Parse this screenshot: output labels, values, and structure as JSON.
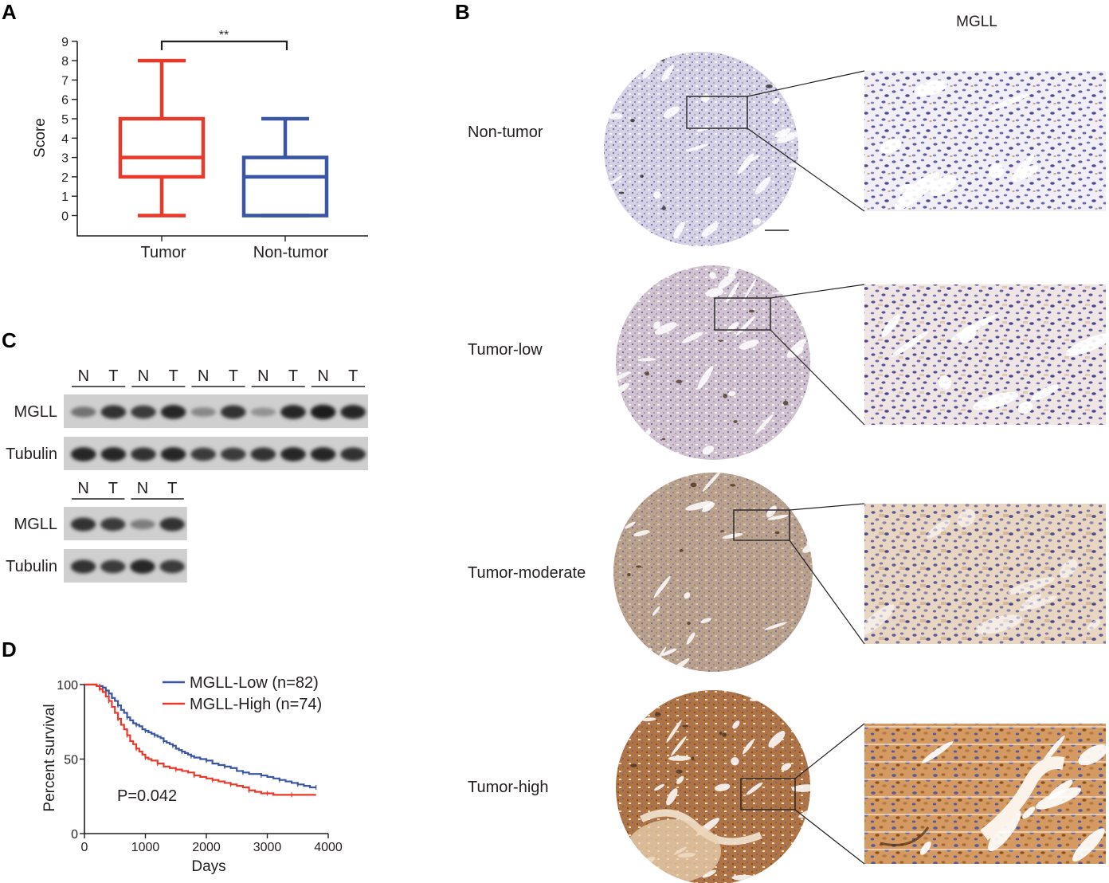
{
  "panels": {
    "a": "A",
    "b": "B",
    "c": "C",
    "d": "D"
  },
  "panel_a": {
    "significance": "**"
  },
  "panel_b": {
    "column_title": "MGLL",
    "rows": [
      {
        "label": "Non-tumor",
        "stain": "#9a8fb8",
        "tint": "#efedf3"
      },
      {
        "label": "Tumor-low",
        "stain": "#9e8ab0",
        "tint": "#f0eaed"
      },
      {
        "label": "Tumor-moderate",
        "stain": "#a8876f",
        "tint": "#e9d9cc"
      },
      {
        "label": "Tumor-high",
        "stain": "#9c5a2c",
        "tint": "#e4c2a0"
      }
    ]
  },
  "panel_c": {
    "blot1": {
      "lane_labels": [
        "N",
        "T",
        "N",
        "T",
        "N",
        "T",
        "N",
        "T",
        "N",
        "T"
      ],
      "rows": [
        "MGLL",
        "Tubulin"
      ],
      "mgll_intensity": [
        0.55,
        0.85,
        0.8,
        0.9,
        0.45,
        0.85,
        0.4,
        0.9,
        0.95,
        0.9
      ],
      "tubulin_intensity": [
        0.9,
        0.9,
        0.85,
        0.9,
        0.8,
        0.8,
        0.85,
        0.9,
        0.9,
        0.85
      ]
    },
    "blot2": {
      "lane_labels": [
        "N",
        "T",
        "N",
        "T"
      ],
      "rows": [
        "MGLL",
        "Tubulin"
      ],
      "mgll_intensity": [
        0.85,
        0.8,
        0.5,
        0.85
      ],
      "tubulin_intensity": [
        0.85,
        0.8,
        0.9,
        0.8
      ]
    }
  },
  "pvalue": "P=0.042",
  "chart_data": [
    {
      "type": "box",
      "panel": "A",
      "categories": [
        "Tumor",
        "Non-tumor"
      ],
      "ylabel": "Score",
      "xlabel": "",
      "ylim": [
        -1,
        9
      ],
      "yticks": [
        0,
        1,
        2,
        3,
        4,
        5,
        6,
        7,
        8,
        9
      ],
      "boxes": [
        {
          "name": "Tumor",
          "min": 0,
          "q1": 2,
          "median": 3,
          "q3": 5,
          "max": 8,
          "color": "#e8392a"
        },
        {
          "name": "Non-tumor",
          "min": 0,
          "q1": 0,
          "median": 2,
          "q3": 3,
          "max": 5,
          "color": "#3955a3"
        }
      ],
      "annotation": "**"
    },
    {
      "type": "line",
      "panel": "D",
      "xlabel": "Days",
      "ylabel": "Percent survival",
      "xlim": [
        0,
        4000
      ],
      "ylim": [
        0,
        100
      ],
      "xticks": [
        0,
        1000,
        2000,
        3000,
        4000
      ],
      "yticks": [
        0,
        50,
        100
      ],
      "legend_position": "top-right",
      "series": [
        {
          "name": "MGLL-Low (n=82)",
          "color": "#3955a3",
          "points": [
            [
              0,
              100
            ],
            [
              150,
              100
            ],
            [
              200,
              99
            ],
            [
              250,
              99
            ],
            [
              300,
              98
            ],
            [
              350,
              96
            ],
            [
              400,
              94
            ],
            [
              450,
              91
            ],
            [
              500,
              89
            ],
            [
              550,
              86
            ],
            [
              600,
              83
            ],
            [
              650,
              81
            ],
            [
              700,
              78
            ],
            [
              750,
              76
            ],
            [
              800,
              74
            ],
            [
              850,
              73
            ],
            [
              900,
              72
            ],
            [
              950,
              70
            ],
            [
              1000,
              69
            ],
            [
              1050,
              68
            ],
            [
              1100,
              67
            ],
            [
              1150,
              66
            ],
            [
              1200,
              65
            ],
            [
              1250,
              64
            ],
            [
              1300,
              62
            ],
            [
              1350,
              61
            ],
            [
              1400,
              60
            ],
            [
              1450,
              59
            ],
            [
              1500,
              57
            ],
            [
              1550,
              56
            ],
            [
              1600,
              55
            ],
            [
              1650,
              54
            ],
            [
              1700,
              53
            ],
            [
              1750,
              52
            ],
            [
              1800,
              51
            ],
            [
              1900,
              50
            ],
            [
              2000,
              49
            ],
            [
              2100,
              47
            ],
            [
              2200,
              46
            ],
            [
              2300,
              45
            ],
            [
              2400,
              44
            ],
            [
              2500,
              42
            ],
            [
              2600,
              41
            ],
            [
              2700,
              40
            ],
            [
              2800,
              40
            ],
            [
              2900,
              39
            ],
            [
              3000,
              38
            ],
            [
              3100,
              37
            ],
            [
              3200,
              36
            ],
            [
              3300,
              35
            ],
            [
              3400,
              34
            ],
            [
              3500,
              33
            ],
            [
              3600,
              32
            ],
            [
              3700,
              31
            ],
            [
              3800,
              31
            ]
          ]
        },
        {
          "name": "MGLL-High (n=74)",
          "color": "#e8392a",
          "points": [
            [
              0,
              100
            ],
            [
              150,
              100
            ],
            [
              200,
              99
            ],
            [
              250,
              97
            ],
            [
              300,
              95
            ],
            [
              350,
              92
            ],
            [
              400,
              89
            ],
            [
              450,
              85
            ],
            [
              500,
              81
            ],
            [
              550,
              77
            ],
            [
              600,
              73
            ],
            [
              650,
              70
            ],
            [
              700,
              66
            ],
            [
              750,
              62
            ],
            [
              800,
              60
            ],
            [
              850,
              57
            ],
            [
              900,
              55
            ],
            [
              950,
              53
            ],
            [
              1000,
              51
            ],
            [
              1050,
              50
            ],
            [
              1100,
              49
            ],
            [
              1200,
              47
            ],
            [
              1300,
              45
            ],
            [
              1400,
              44
            ],
            [
              1500,
              43
            ],
            [
              1600,
              42
            ],
            [
              1700,
              41
            ],
            [
              1800,
              39
            ],
            [
              1900,
              38
            ],
            [
              2000,
              37
            ],
            [
              2100,
              36
            ],
            [
              2200,
              35
            ],
            [
              2300,
              34
            ],
            [
              2400,
              33
            ],
            [
              2500,
              32
            ],
            [
              2600,
              31
            ],
            [
              2700,
              29
            ],
            [
              2800,
              28
            ],
            [
              2900,
              27
            ],
            [
              3000,
              27
            ],
            [
              3100,
              26
            ],
            [
              3200,
              26
            ],
            [
              3400,
              26
            ],
            [
              3600,
              26
            ],
            [
              3800,
              26
            ]
          ]
        }
      ]
    }
  ]
}
